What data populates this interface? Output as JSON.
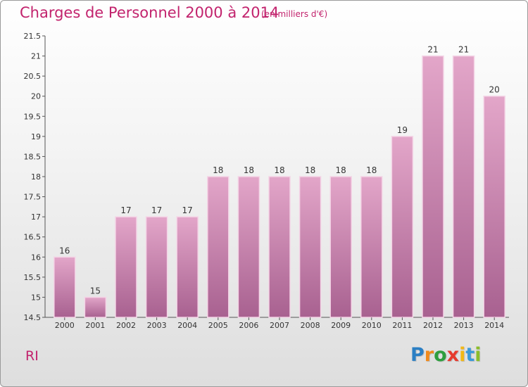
{
  "title": "Charges de Personnel 2000 à 2014",
  "subtitle": "(en milliers d'€)",
  "footer": {
    "label": "RI"
  },
  "logo": {
    "letters": [
      "P",
      "r",
      "o",
      "x",
      "i",
      "t",
      "i"
    ],
    "colors": [
      "#2b7fc4",
      "#f08a1c",
      "#2e9e3e",
      "#e63b2e",
      "#f2b817",
      "#3a9ad9",
      "#8bbd2b"
    ]
  },
  "colors": {
    "accent": "#c2236d",
    "bar_top": "#e3a6c9",
    "bar_bottom": "#a86190",
    "bar_edge": "#f4d4e6"
  },
  "chart_data": {
    "type": "bar",
    "title": "Charges de Personnel 2000 à 2014",
    "ylabel": "",
    "xlabel": "",
    "ylim": [
      14.5,
      21.5
    ],
    "yticks": [
      "14.5",
      "15",
      "15.5",
      "16",
      "16.5",
      "17",
      "17.5",
      "18",
      "18.5",
      "19",
      "19.5",
      "20",
      "20.5",
      "21",
      "21.5"
    ],
    "categories": [
      "2000",
      "2001",
      "2002",
      "2003",
      "2004",
      "2005",
      "2006",
      "2007",
      "2008",
      "2009",
      "2010",
      "2011",
      "2012",
      "2013",
      "2014"
    ],
    "values": [
      16,
      15,
      17,
      17,
      17,
      18,
      18,
      18,
      18,
      18,
      18,
      19,
      21,
      21,
      20
    ],
    "data_labels": [
      "16",
      "15",
      "17",
      "17",
      "17",
      "18",
      "18",
      "18",
      "18",
      "18",
      "18",
      "19",
      "21",
      "21",
      "20"
    ],
    "grid": false,
    "legend": "none"
  }
}
